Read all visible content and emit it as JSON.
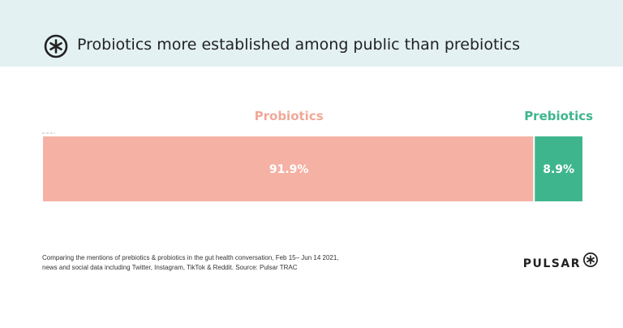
{
  "header": {
    "title": "Probiotics more established among public than prebiotics",
    "logo_icon": "pulsar-asterisk-icon"
  },
  "chart_data": {
    "type": "bar",
    "orientation": "horizontal-stacked",
    "categories": [
      "Probiotics",
      "Prebiotics"
    ],
    "values": [
      91.9,
      8.9
    ],
    "value_labels": [
      "91.9%",
      "8.9%"
    ],
    "colors": [
      "#f5b1a4",
      "#3fb58e"
    ],
    "label_colors": [
      "#f0a898",
      "#3fb58e"
    ],
    "title": "Probiotics more established among public than prebiotics",
    "xlabel": "",
    "ylabel": "",
    "grid": false,
    "legend": "none"
  },
  "footnote": {
    "line1": "Comparing the mentions of prebiotics & probiotics in the gut health conversation, Feb 15– Jun 14 2021,",
    "line2": "news and social data including Twitter, Instagram, TikTok & Reddit. Source: Pulsar TRAC"
  },
  "brand": {
    "name": "PULSAR",
    "icon": "pulsar-asterisk-icon"
  }
}
